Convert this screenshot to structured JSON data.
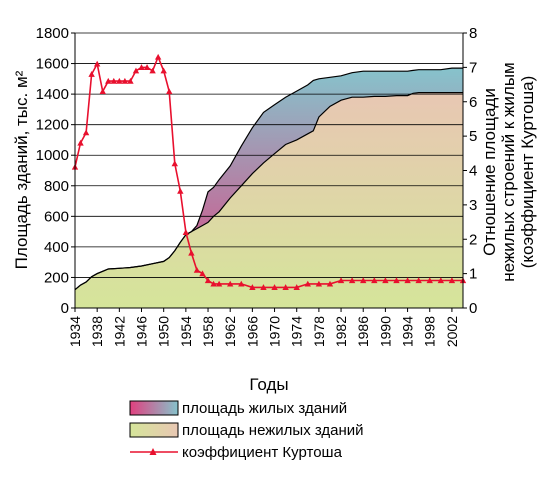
{
  "chart_data": {
    "type": "area",
    "xlabel": "Годы",
    "ylabel_left": "Площадь зданий, тыс. м²",
    "ylabel_right_lines": [
      "Отношение площади",
      "нежилых строений к жилым",
      "(коэффициент Куртоша)"
    ],
    "x_ticks": [
      1934,
      1938,
      1942,
      1946,
      1950,
      1954,
      1958,
      1962,
      1966,
      1970,
      1974,
      1978,
      1982,
      1986,
      1990,
      1994,
      1998,
      2002
    ],
    "x_range": [
      1934,
      2004
    ],
    "y_left_range": [
      0,
      1800
    ],
    "y_left_ticks": [
      0,
      200,
      400,
      600,
      800,
      1000,
      1200,
      1400,
      1600,
      1800
    ],
    "y_right_range": [
      0,
      8
    ],
    "y_right_ticks": [
      0,
      1,
      2,
      3,
      4,
      5,
      6,
      7,
      8
    ],
    "grid": true,
    "legend_position": "bottom",
    "colors": {
      "residential_top": "#86c3cc",
      "residential_bottom": "#e0407f",
      "nonresidential_top": "#e8c7b3",
      "nonresidential_bottom": "#d5e59a",
      "kurtosh": "#e8102e"
    },
    "series": [
      {
        "name": "площадь нежилых зданий",
        "x": [
          1934,
          1935,
          1936,
          1937,
          1938,
          1939,
          1940,
          1942,
          1944,
          1946,
          1948,
          1950,
          1951,
          1952,
          1953,
          1954,
          1955,
          1956,
          1957,
          1958,
          1959,
          1960,
          1962,
          1964,
          1966,
          1968,
          1970,
          1972,
          1974,
          1976,
          1977,
          1978,
          1980,
          1982,
          1984,
          1986,
          1988,
          1990,
          1992,
          1994,
          1995,
          1996,
          1998,
          2000,
          2002,
          2004
        ],
        "values": [
          120,
          150,
          170,
          205,
          225,
          240,
          255,
          260,
          265,
          275,
          290,
          305,
          330,
          375,
          430,
          480,
          500,
          520,
          540,
          560,
          600,
          630,
          720,
          800,
          880,
          950,
          1010,
          1070,
          1100,
          1140,
          1160,
          1250,
          1320,
          1360,
          1380,
          1380,
          1385,
          1385,
          1390,
          1390,
          1405,
          1410,
          1410,
          1410,
          1410,
          1410
        ]
      },
      {
        "name": "площадь жилых зданий",
        "x": [
          1934,
          1935,
          1936,
          1937,
          1938,
          1939,
          1940,
          1942,
          1944,
          1946,
          1948,
          1950,
          1951,
          1952,
          1953,
          1954,
          1955,
          1956,
          1957,
          1958,
          1959,
          1960,
          1962,
          1964,
          1966,
          1968,
          1970,
          1972,
          1974,
          1976,
          1977,
          1978,
          1980,
          1982,
          1984,
          1986,
          1988,
          1990,
          1992,
          1994,
          1995,
          1996,
          1998,
          2000,
          2002,
          2004
        ],
        "values": [
          120,
          150,
          170,
          205,
          225,
          240,
          255,
          260,
          265,
          275,
          290,
          305,
          330,
          375,
          430,
          480,
          500,
          540,
          640,
          760,
          790,
          840,
          930,
          1060,
          1180,
          1280,
          1330,
          1380,
          1420,
          1460,
          1490,
          1500,
          1510,
          1520,
          1540,
          1550,
          1550,
          1550,
          1550,
          1550,
          1555,
          1560,
          1560,
          1560,
          1570,
          1570
        ]
      },
      {
        "name": "коэффициент Куртоша",
        "axis": "right",
        "x": [
          1934,
          1935,
          1936,
          1937,
          1938,
          1939,
          1940,
          1941,
          1942,
          1943,
          1944,
          1945,
          1946,
          1947,
          1948,
          1949,
          1950,
          1951,
          1952,
          1953,
          1954,
          1955,
          1956,
          1957,
          1958,
          1959,
          1960,
          1962,
          1964,
          1966,
          1968,
          1970,
          1972,
          1974,
          1976,
          1978,
          1980,
          1982,
          1984,
          1986,
          1988,
          1990,
          1992,
          1994,
          1996,
          1998,
          2000,
          2002,
          2004
        ],
        "values": [
          4.1,
          4.8,
          5.1,
          6.8,
          7.1,
          6.3,
          6.6,
          6.6,
          6.6,
          6.6,
          6.6,
          6.9,
          7.0,
          7.0,
          6.9,
          7.3,
          6.9,
          6.3,
          4.2,
          3.4,
          2.2,
          1.6,
          1.1,
          1.0,
          0.8,
          0.7,
          0.7,
          0.7,
          0.7,
          0.6,
          0.6,
          0.6,
          0.6,
          0.6,
          0.7,
          0.7,
          0.7,
          0.8,
          0.8,
          0.8,
          0.8,
          0.8,
          0.8,
          0.8,
          0.8,
          0.8,
          0.8,
          0.8,
          0.8
        ]
      }
    ],
    "legend": [
      {
        "label": "площадь жилых зданий",
        "kind": "residential"
      },
      {
        "label": "площадь нежилых зданий",
        "kind": "nonresidential"
      },
      {
        "label": "коэффициент Куртоша",
        "kind": "kurtosh"
      }
    ]
  }
}
